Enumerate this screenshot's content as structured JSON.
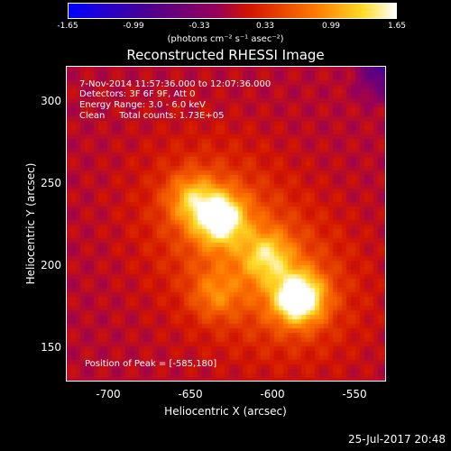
{
  "colorbar": {
    "ticks": [
      "-1.65",
      "-0.99",
      "-0.33",
      "0.33",
      "0.99",
      "1.65"
    ],
    "units": "(photons cm⁻² s⁻¹ asec⁻²)"
  },
  "plot": {
    "title": "Reconstructed RHESSI Image",
    "info_line1": "7-Nov-2014 11:57:36.000 to 12:07:36.000",
    "info_line2": "Detectors: 3F 6F 9F, Att 0",
    "info_line3": "Energy Range: 3.0 - 6.0 keV",
    "info_line4": "Clean     Total counts: 1.73E+05",
    "peak_label": "Position of Peak = [-585,180]",
    "xlabel": "Heliocentric X (arcsec)",
    "ylabel": "Heliocentric Y (arcsec)",
    "x_ticks": [
      "-700",
      "-650",
      "-600",
      "-550"
    ],
    "y_ticks": [
      "300",
      "250",
      "200",
      "150"
    ],
    "xlim": [
      -725,
      -530
    ],
    "ylim": [
      128,
      318
    ],
    "sources": [
      {
        "x": -585,
        "y": 180,
        "strength": 1.0
      },
      {
        "x": -633,
        "y": 228,
        "strength": 0.85
      },
      {
        "x": -604,
        "y": 205,
        "strength": 0.5
      },
      {
        "x": -650,
        "y": 240,
        "strength": 0.45
      },
      {
        "x": -636,
        "y": 182,
        "strength": 0.3
      }
    ]
  },
  "timestamp": "25-Jul-2017 20:48",
  "colors": {
    "background": "#000000",
    "foreground": "#ffffff"
  }
}
